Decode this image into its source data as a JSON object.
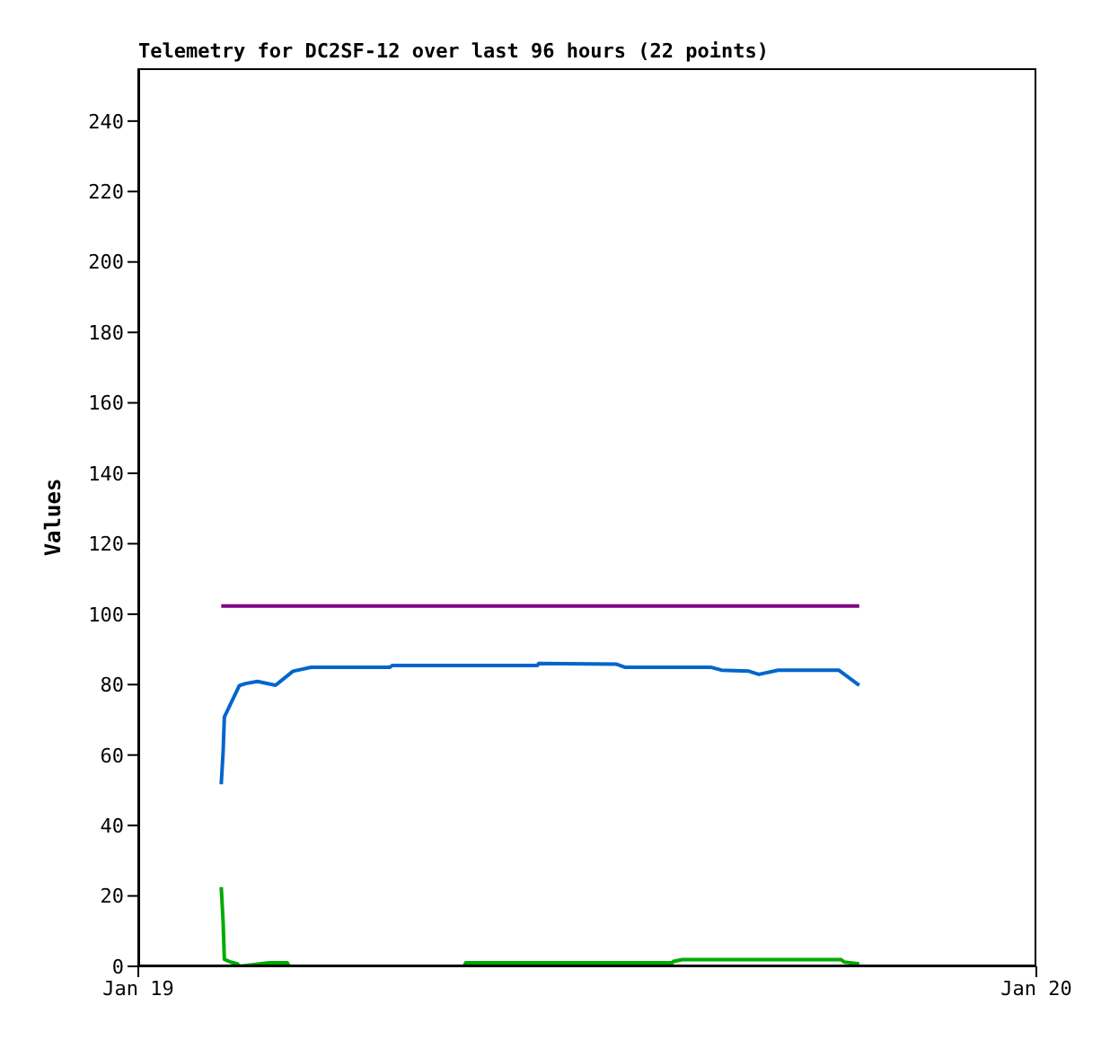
{
  "chart_data": {
    "type": "line",
    "title": "Telemetry for DC2SF-12 over last 96 hours (22 points)",
    "ylabel": "Values",
    "xlim": [
      "--01-19",
      "--01-20"
    ],
    "xticks": [
      {
        "value": "--01-19",
        "label": "Jan 19"
      },
      {
        "value": "--01-20",
        "label": "Jan 20"
      }
    ],
    "ylim": [
      0,
      255
    ],
    "yticks": [
      0,
      20,
      40,
      60,
      80,
      100,
      120,
      140,
      160,
      180,
      200,
      220,
      240
    ],
    "series": [
      {
        "color": "#800080",
        "x": [
          "--01-19T02:13",
          "--01-19T19:16"
        ],
        "values": [
          102.3,
          102.3
        ]
      },
      {
        "color": "#0066cc",
        "x": [
          "--01-19T02:13",
          "--01-19T02:16",
          "--01-19T02:18",
          "--01-19T02:42",
          "--01-19T02:52",
          "--01-19T03:11",
          "--01-19T03:40",
          "--01-19T04:08",
          "--01-19T04:37",
          "--01-19T06:43",
          "--01-19T06:47",
          "--01-19T10:40",
          "--01-19T10:42",
          "--01-19T12:47",
          "--01-19T13:01",
          "--01-19T15:19",
          "--01-19T15:35",
          "--01-19T16:19",
          "--01-19T16:35",
          "--01-19T17:06",
          "--01-19T18:43",
          "--01-19T19:16"
        ],
        "values": [
          51.7,
          61,
          70.8,
          79.7,
          80.3,
          80.9,
          79.8,
          83.8,
          84.9,
          84.9,
          85.4,
          85.4,
          86,
          85.8,
          84.9,
          84.9,
          84.1,
          83.8,
          82.9,
          84.1,
          84.1,
          79.8
        ]
      },
      {
        "color": "#00aa00",
        "x": [
          "--01-19T02:13",
          "--01-19T02:16",
          "--01-19T02:18",
          "--01-19T02:28",
          "--01-19T02:39",
          "--01-19T02:42",
          "--01-19T03:30",
          "--01-19T03:59",
          "--01-19T04:02",
          "--01-19T08:42",
          "--01-19T08:45",
          "--01-19T14:16",
          "--01-19T14:18",
          "--01-19T14:32",
          "--01-19T18:47",
          "--01-19T18:52",
          "--01-19T19:16"
        ],
        "values": [
          22.5,
          12.6,
          2,
          1.2,
          0.7,
          0,
          1,
          1,
          0,
          0,
          1,
          1,
          1.4,
          1.9,
          1.9,
          1.2,
          0.7
        ]
      }
    ]
  }
}
